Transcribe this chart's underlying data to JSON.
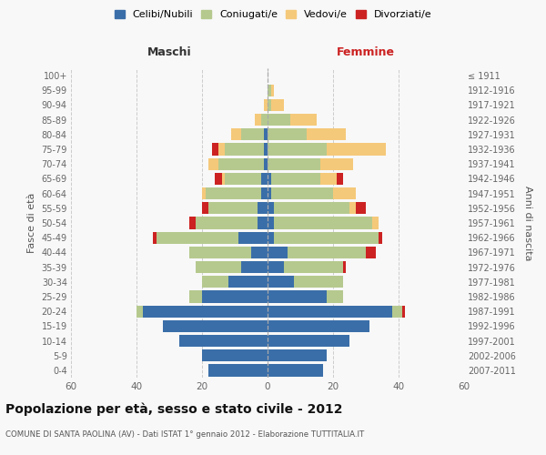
{
  "age_groups": [
    "0-4",
    "5-9",
    "10-14",
    "15-19",
    "20-24",
    "25-29",
    "30-34",
    "35-39",
    "40-44",
    "45-49",
    "50-54",
    "55-59",
    "60-64",
    "65-69",
    "70-74",
    "75-79",
    "80-84",
    "85-89",
    "90-94",
    "95-99",
    "100+"
  ],
  "birth_years": [
    "2007-2011",
    "2002-2006",
    "1997-2001",
    "1992-1996",
    "1987-1991",
    "1982-1986",
    "1977-1981",
    "1972-1976",
    "1967-1971",
    "1962-1966",
    "1957-1961",
    "1952-1956",
    "1947-1951",
    "1942-1946",
    "1937-1941",
    "1932-1936",
    "1927-1931",
    "1922-1926",
    "1917-1921",
    "1912-1916",
    "≤ 1911"
  ],
  "colors": {
    "celibi": "#3a6ea8",
    "coniugati": "#b5c98e",
    "vedovi": "#f5c97a",
    "divorziati": "#cc2222"
  },
  "males": {
    "celibi": [
      18,
      20,
      27,
      32,
      38,
      20,
      12,
      8,
      5,
      9,
      3,
      3,
      2,
      2,
      1,
      1,
      1,
      0,
      0,
      0,
      0
    ],
    "coniugati": [
      0,
      0,
      0,
      0,
      2,
      4,
      8,
      14,
      19,
      25,
      19,
      15,
      17,
      11,
      14,
      12,
      7,
      2,
      0,
      0,
      0
    ],
    "vedovi": [
      0,
      0,
      0,
      0,
      0,
      0,
      0,
      0,
      0,
      0,
      0,
      0,
      1,
      1,
      3,
      2,
      3,
      2,
      1,
      0,
      0
    ],
    "divorziati": [
      0,
      0,
      0,
      0,
      0,
      0,
      0,
      0,
      0,
      1,
      2,
      2,
      0,
      2,
      0,
      2,
      0,
      0,
      0,
      0,
      0
    ]
  },
  "females": {
    "celibi": [
      17,
      18,
      25,
      31,
      38,
      18,
      8,
      5,
      6,
      2,
      2,
      2,
      1,
      1,
      0,
      0,
      0,
      0,
      0,
      0,
      0
    ],
    "coniugati": [
      0,
      0,
      0,
      0,
      3,
      5,
      15,
      18,
      24,
      32,
      30,
      23,
      19,
      15,
      16,
      18,
      12,
      7,
      1,
      1,
      0
    ],
    "vedovi": [
      0,
      0,
      0,
      0,
      0,
      0,
      0,
      0,
      0,
      0,
      2,
      2,
      7,
      5,
      10,
      18,
      12,
      8,
      4,
      1,
      0
    ],
    "divorziati": [
      0,
      0,
      0,
      0,
      1,
      0,
      0,
      1,
      3,
      1,
      0,
      3,
      0,
      2,
      0,
      0,
      0,
      0,
      0,
      0,
      0
    ]
  },
  "title": "Popolazione per età, sesso e stato civile - 2012",
  "subtitle": "COMUNE DI SANTA PAOLINA (AV) - Dati ISTAT 1° gennaio 2012 - Elaborazione TUTTITALIA.IT",
  "xlabel_left": "Maschi",
  "xlabel_right": "Femmine",
  "ylabel_left": "Fasce di età",
  "ylabel_right": "Anni di nascita",
  "xlim": 60,
  "legend_labels": [
    "Celibi/Nubili",
    "Coniugati/e",
    "Vedovi/e",
    "Divorziati/e"
  ],
  "bg_color": "#f8f8f8",
  "bar_height": 0.82,
  "grid_color": "#cccccc"
}
